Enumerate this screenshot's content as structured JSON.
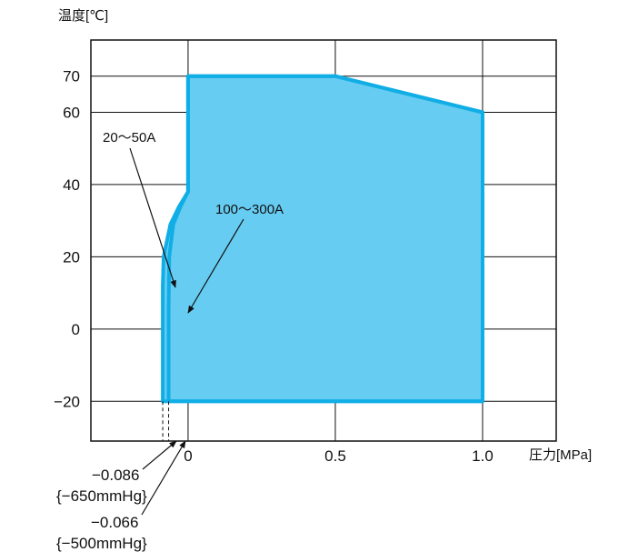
{
  "chart_data": {
    "type": "area",
    "ylabel": "温度[℃]",
    "xlabel": "圧力[MPa]",
    "xlim": [
      -0.33,
      1.25
    ],
    "ylim": [
      -31,
      80
    ],
    "grid": true,
    "x_ticks": [
      {
        "value": 0,
        "label": "0"
      },
      {
        "value": 0.5,
        "label": "0.5"
      },
      {
        "value": 1.0,
        "label": "1.0"
      }
    ],
    "y_ticks": [
      {
        "value": 70,
        "label": "70"
      },
      {
        "value": 60,
        "label": "60"
      },
      {
        "value": 40,
        "label": "40"
      },
      {
        "value": 20,
        "label": "20"
      },
      {
        "value": 0,
        "label": "0"
      },
      {
        "value": -20,
        "label": "−20"
      }
    ],
    "colors": {
      "fill": "#66ccf2",
      "outline": "#11aee6",
      "grid": "#111111"
    },
    "series": [
      {
        "name": "20〜50A",
        "points": [
          [
            -0.086,
            -20
          ],
          [
            -0.086,
            12
          ],
          [
            -0.083,
            20
          ],
          [
            -0.06,
            29
          ],
          [
            -0.03,
            34
          ],
          [
            0,
            38
          ],
          [
            0,
            70
          ],
          [
            0.5,
            70
          ],
          [
            1.0,
            60
          ],
          [
            1.0,
            -20
          ]
        ]
      },
      {
        "name": "100〜300A",
        "points": [
          [
            -0.066,
            -20
          ],
          [
            -0.066,
            5
          ],
          [
            -0.064,
            20
          ],
          [
            -0.05,
            29
          ],
          [
            -0.025,
            34
          ],
          [
            0,
            38
          ],
          [
            0,
            70
          ],
          [
            0.5,
            70
          ],
          [
            1.0,
            60
          ],
          [
            1.0,
            -20
          ]
        ]
      }
    ],
    "annotations": [
      {
        "text": "20〜50A",
        "points_to": [
          -0.086,
          12
        ]
      },
      {
        "text": "100〜300A",
        "points_to": [
          -0.066,
          5
        ]
      },
      {
        "text": "−0.086",
        "points_to": [
          -0.086,
          -31
        ]
      },
      {
        "text": "{−650mmHg}"
      },
      {
        "text": "−0.066",
        "points_to": [
          -0.066,
          -31
        ]
      },
      {
        "text": "{−500mmHg}"
      }
    ]
  }
}
